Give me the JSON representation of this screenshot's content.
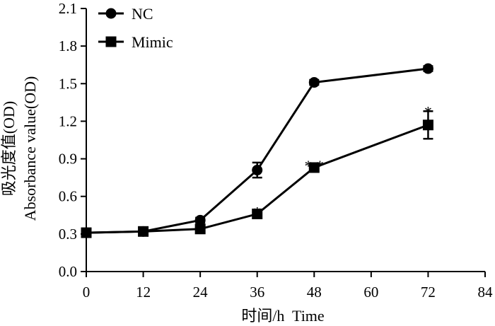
{
  "chart_data": {
    "type": "line",
    "title": "",
    "xlabel": "时间/h  Time",
    "ylabel_cn": "吸光度值(OD)",
    "ylabel_en": "Absorbance value(OD)",
    "xlim": [
      0,
      84
    ],
    "ylim": [
      0,
      2.1
    ],
    "xticks": [
      "0",
      "12",
      "24",
      "36",
      "48",
      "60",
      "72",
      "84"
    ],
    "yticks": [
      "0.0",
      "0.3",
      "0.6",
      "0.9",
      "1.2",
      "1.5",
      "1.8",
      "2.1"
    ],
    "grid": false,
    "legend": "top-left",
    "series": [
      {
        "name": "NC",
        "marker": "circle",
        "color": "#000000",
        "x": [
          0,
          12,
          24,
          36,
          48,
          72
        ],
        "y": [
          0.31,
          0.32,
          0.41,
          0.81,
          1.51,
          1.62
        ],
        "err": [
          0.02,
          0.02,
          0.02,
          0.06,
          0.02,
          0.02
        ]
      },
      {
        "name": "Mimic",
        "marker": "square",
        "color": "#000000",
        "x": [
          0,
          12,
          24,
          36,
          48,
          72
        ],
        "y": [
          0.31,
          0.32,
          0.34,
          0.46,
          0.83,
          1.17
        ],
        "err": [
          0.02,
          0.02,
          0.02,
          0.02,
          0.02,
          0.11
        ]
      }
    ],
    "annotations": [
      {
        "x": 36,
        "y": 0.5,
        "text": "*"
      },
      {
        "x": 48,
        "y": 0.87,
        "text": "* *"
      },
      {
        "x": 72,
        "y": 1.3,
        "text": "*"
      }
    ]
  }
}
